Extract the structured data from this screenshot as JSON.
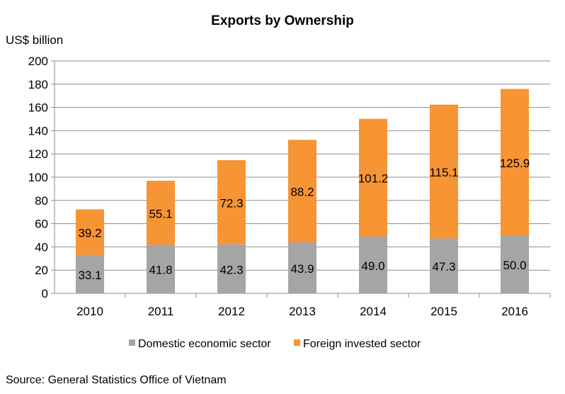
{
  "chart_data": {
    "type": "stacked-bar",
    "title": "Exports by Ownership",
    "ylabel": "US$ billion",
    "xlabel": "",
    "categories": [
      "2010",
      "2011",
      "2012",
      "2013",
      "2014",
      "2015",
      "2016"
    ],
    "series": [
      {
        "name": "Domestic economic sector",
        "color": "#a5a5a5",
        "values": [
          33.1,
          41.8,
          42.3,
          43.9,
          49.0,
          47.3,
          50.0
        ],
        "labels": [
          "33.1",
          "41.8",
          "42.3",
          "43.9",
          "49.0",
          "47.3",
          "50.0"
        ]
      },
      {
        "name": "Foreign invested sector",
        "color": "#f79433",
        "values": [
          39.2,
          55.1,
          72.3,
          88.2,
          101.2,
          115.1,
          125.9
        ],
        "labels": [
          "39.2",
          "55.1",
          "72.3",
          "88.2",
          "101.2",
          "115.1",
          "125.9"
        ]
      }
    ],
    "ylim": [
      0,
      200
    ],
    "yticks": [
      "0",
      "20",
      "40",
      "60",
      "80",
      "100",
      "120",
      "140",
      "160",
      "180",
      "200"
    ],
    "grid": true,
    "legend": "bottom",
    "source": "Source: General Statistics Office of Vietnam"
  }
}
